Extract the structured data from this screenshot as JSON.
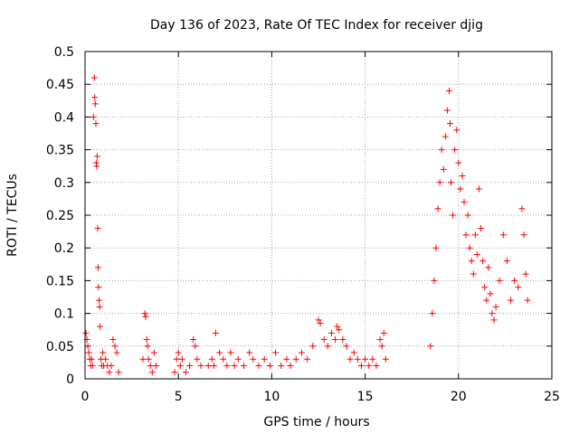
{
  "chart_data": {
    "type": "scatter",
    "title": "Day 136 of 2023, Rate Of TEC Index for receiver djig",
    "xlabel": "GPS time / hours",
    "ylabel": "ROTI / TECUs",
    "xlim": [
      0,
      25
    ],
    "ylim": [
      0,
      0.5
    ],
    "xticks": [
      0,
      5,
      10,
      15,
      20,
      25
    ],
    "yticks": [
      0,
      0.05,
      0.1,
      0.15,
      0.2,
      0.25,
      0.3,
      0.35,
      0.4,
      0.45,
      0.5
    ],
    "xtick_labels": [
      "0",
      "5",
      "10",
      "15",
      "20",
      "25"
    ],
    "ytick_labels": [
      "0",
      "0.05",
      "0.1",
      "0.15",
      "0.2",
      "0.25",
      "0.3",
      "0.35",
      "0.4",
      "0.45",
      "0.5"
    ],
    "grid": true,
    "marker": "+",
    "color": "#ff0000",
    "series": [
      {
        "x": [
          0.05,
          0.1,
          0.15,
          0.2,
          0.25,
          0.3,
          0.35,
          0.4,
          0.45,
          0.5,
          0.52,
          0.55,
          0.58,
          0.6,
          0.62,
          0.65,
          0.68,
          0.7,
          0.72,
          0.75,
          0.78,
          0.8,
          0.85,
          0.9,
          0.95,
          1.0,
          1.1,
          1.2,
          1.3,
          1.4,
          1.5,
          1.6,
          1.7,
          1.8,
          3.1,
          3.2,
          3.25,
          3.3,
          3.35,
          3.4,
          3.5,
          3.6,
          3.7,
          3.8,
          4.8,
          4.9,
          5.0,
          5.1,
          5.2,
          5.4,
          5.6,
          5.8,
          5.9,
          6.0,
          6.2,
          6.6,
          6.8,
          6.9,
          7.0,
          7.2,
          7.4,
          7.6,
          7.8,
          8.0,
          8.2,
          8.5,
          8.8,
          9.0,
          9.3,
          9.6,
          9.9,
          10.2,
          10.5,
          10.8,
          11.0,
          11.3,
          11.6,
          11.9,
          12.2,
          12.5,
          12.6,
          12.8,
          13.0,
          13.2,
          13.4,
          13.5,
          13.6,
          13.8,
          14.0,
          14.2,
          14.4,
          14.6,
          14.8,
          15.0,
          15.2,
          15.4,
          15.6,
          15.8,
          15.9,
          16.0,
          16.1,
          18.5,
          18.6,
          18.7,
          18.8,
          18.9,
          19.0,
          19.1,
          19.2,
          19.3,
          19.4,
          19.5,
          19.55,
          19.6,
          19.7,
          19.8,
          19.9,
          20.0,
          20.1,
          20.2,
          20.3,
          20.4,
          20.5,
          20.6,
          20.7,
          20.8,
          20.9,
          21.0,
          21.1,
          21.2,
          21.3,
          21.4,
          21.5,
          21.6,
          21.7,
          21.8,
          21.9,
          22.0,
          22.2,
          22.4,
          22.6,
          22.8,
          23.0,
          23.2,
          23.4,
          23.5,
          23.6,
          23.7
        ],
        "y": [
          0.07,
          0.06,
          0.05,
          0.04,
          0.03,
          0.02,
          0.03,
          0.02,
          0.4,
          0.46,
          0.43,
          0.42,
          0.39,
          0.33,
          0.325,
          0.34,
          0.23,
          0.17,
          0.14,
          0.12,
          0.11,
          0.08,
          0.03,
          0.02,
          0.04,
          0.02,
          0.03,
          0.02,
          0.01,
          0.02,
          0.06,
          0.05,
          0.04,
          0.01,
          0.03,
          0.1,
          0.095,
          0.06,
          0.05,
          0.03,
          0.02,
          0.01,
          0.04,
          0.02,
          0.01,
          0.03,
          0.04,
          0.02,
          0.03,
          0.01,
          0.02,
          0.06,
          0.05,
          0.03,
          0.02,
          0.02,
          0.03,
          0.02,
          0.07,
          0.04,
          0.03,
          0.02,
          0.04,
          0.02,
          0.03,
          0.02,
          0.04,
          0.03,
          0.02,
          0.03,
          0.02,
          0.04,
          0.02,
          0.03,
          0.02,
          0.03,
          0.04,
          0.03,
          0.05,
          0.09,
          0.085,
          0.06,
          0.05,
          0.07,
          0.06,
          0.08,
          0.075,
          0.06,
          0.05,
          0.03,
          0.04,
          0.03,
          0.02,
          0.03,
          0.02,
          0.03,
          0.02,
          0.06,
          0.05,
          0.07,
          0.03,
          0.05,
          0.1,
          0.15,
          0.2,
          0.26,
          0.3,
          0.35,
          0.32,
          0.37,
          0.41,
          0.44,
          0.39,
          0.3,
          0.25,
          0.35,
          0.38,
          0.33,
          0.29,
          0.31,
          0.27,
          0.22,
          0.25,
          0.2,
          0.18,
          0.16,
          0.22,
          0.19,
          0.29,
          0.23,
          0.18,
          0.14,
          0.12,
          0.17,
          0.13,
          0.1,
          0.09,
          0.11,
          0.15,
          0.22,
          0.18,
          0.12,
          0.15,
          0.14,
          0.26,
          0.22,
          0.16,
          0.12
        ]
      }
    ]
  }
}
